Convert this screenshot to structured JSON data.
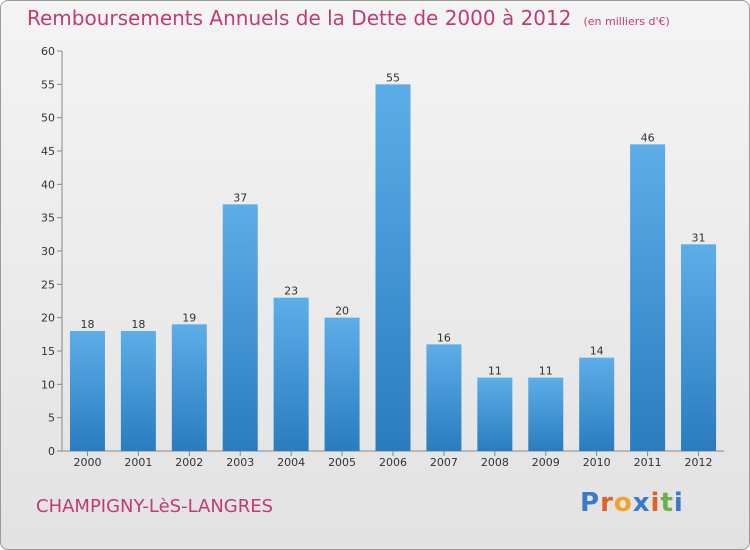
{
  "page": {
    "title": "Remboursements Annuels de la Dette de 2000 à 2012",
    "unit": "(en milliers d'€)",
    "city": "CHAMPIGNY-LèS-LANGRES",
    "logo": "Proxiti"
  },
  "colors": {
    "title": "#c23a78",
    "bar_top": "#5dade8",
    "bar_bottom": "#2a7cbf",
    "logo_letters": [
      "#3a7ac8",
      "#e0622a",
      "#f0a22a",
      "#3a7ac8",
      "#e0622a",
      "#6ab04c",
      "#3a7ac8"
    ]
  },
  "chart_data": {
    "type": "bar",
    "categories": [
      "2000",
      "2001",
      "2002",
      "2003",
      "2004",
      "2005",
      "2006",
      "2007",
      "2008",
      "2009",
      "2010",
      "2011",
      "2012"
    ],
    "values": [
      18,
      18,
      19,
      37,
      23,
      20,
      55,
      16,
      11,
      11,
      14,
      46,
      31
    ],
    "yticks": [
      0,
      5,
      10,
      15,
      20,
      25,
      30,
      35,
      40,
      45,
      50,
      55,
      60
    ],
    "ylim": [
      0,
      60
    ],
    "grid": false,
    "data_labels": true
  }
}
